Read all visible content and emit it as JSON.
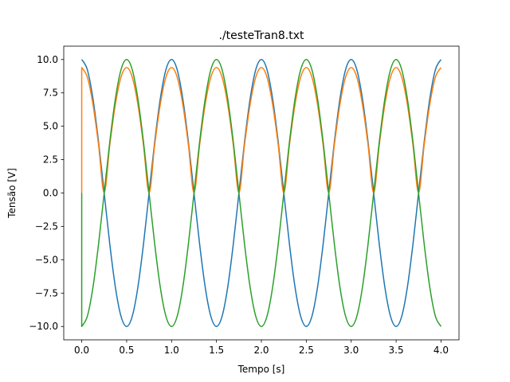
{
  "chart_data": {
    "type": "line",
    "title": "./testeTran8.txt",
    "xlabel": "Tempo [s]",
    "ylabel": "Tensão [V]",
    "xlim": [
      -0.2,
      4.2
    ],
    "ylim": [
      -11.0,
      11.0
    ],
    "xticks": [
      "0.0",
      "0.5",
      "1.0",
      "1.5",
      "2.0",
      "2.5",
      "3.0",
      "3.5",
      "4.0"
    ],
    "xtick_values": [
      0.0,
      0.5,
      1.0,
      1.5,
      2.0,
      2.5,
      3.0,
      3.5,
      4.0
    ],
    "yticks": [
      "−10.0",
      "−7.5",
      "−5.0",
      "−2.5",
      "0.0",
      "2.5",
      "5.0",
      "7.5",
      "10.0"
    ],
    "ytick_values": [
      -10.0,
      -7.5,
      -5.0,
      -2.5,
      0.0,
      2.5,
      5.0,
      7.5,
      10.0
    ],
    "grid": false,
    "legend": "none",
    "series": [
      {
        "color": "#1f77b4",
        "x": [
          0.0,
          0.0625,
          0.125,
          0.1875,
          0.25,
          0.3125,
          0.375,
          0.4375,
          0.5,
          0.5625,
          0.625,
          0.6875,
          0.75,
          0.8125,
          0.875,
          0.9375,
          1.0,
          1.0625,
          1.125,
          1.1875,
          1.25,
          1.3125,
          1.375,
          1.4375,
          1.5,
          1.5625,
          1.625,
          1.6875,
          1.75,
          1.8125,
          1.875,
          1.9375,
          2.0,
          2.0625,
          2.125,
          2.1875,
          2.25,
          2.3125,
          2.375,
          2.4375,
          2.5,
          2.5625,
          2.625,
          2.6875,
          2.75,
          2.8125,
          2.875,
          2.9375,
          3.0,
          3.0625,
          3.125,
          3.1875,
          3.25,
          3.3125,
          3.375,
          3.4375,
          3.5,
          3.5625,
          3.625,
          3.6875,
          3.75,
          3.8125,
          3.875,
          3.9375,
          4.0
        ],
        "y": [
          10.0,
          9.24,
          7.07,
          3.83,
          0.0,
          -3.83,
          -7.07,
          -9.24,
          -10.0,
          -9.24,
          -7.07,
          -3.83,
          0.0,
          3.83,
          7.07,
          9.24,
          10.0,
          9.24,
          7.07,
          3.83,
          0.0,
          -3.83,
          -7.07,
          -9.24,
          -10.0,
          -9.24,
          -7.07,
          -3.83,
          0.0,
          3.83,
          7.07,
          9.24,
          10.0,
          9.24,
          7.07,
          3.83,
          0.0,
          -3.83,
          -7.07,
          -9.24,
          -10.0,
          -9.24,
          -7.07,
          -3.83,
          0.0,
          3.83,
          7.07,
          9.24,
          10.0,
          9.24,
          7.07,
          3.83,
          0.0,
          -3.83,
          -7.07,
          -9.24,
          -10.0,
          -9.24,
          -7.07,
          -3.83,
          0.0,
          3.83,
          7.07,
          9.24,
          10.0
        ]
      },
      {
        "color": "#ff7f0e",
        "x": [
          0.0,
          0.0,
          0.0625,
          0.125,
          0.1875,
          0.25,
          0.3125,
          0.375,
          0.4375,
          0.5,
          0.5625,
          0.625,
          0.6875,
          0.75,
          0.8125,
          0.875,
          0.9375,
          1.0,
          1.0625,
          1.125,
          1.1875,
          1.25,
          1.3125,
          1.375,
          1.4375,
          1.5,
          1.5625,
          1.625,
          1.6875,
          1.75,
          1.8125,
          1.875,
          1.9375,
          2.0,
          2.0625,
          2.125,
          2.1875,
          2.25,
          2.3125,
          2.375,
          2.4375,
          2.5,
          2.5625,
          2.625,
          2.6875,
          2.75,
          2.8125,
          2.875,
          2.9375,
          3.0,
          3.0625,
          3.125,
          3.1875,
          3.25,
          3.3125,
          3.375,
          3.4375,
          3.5,
          3.5625,
          3.625,
          3.6875,
          3.75,
          3.8125,
          3.875,
          3.9375,
          4.0
        ],
        "y": [
          0.0,
          9.4,
          8.68,
          6.65,
          3.6,
          0.0,
          3.6,
          6.65,
          8.68,
          9.4,
          8.68,
          6.65,
          3.6,
          0.0,
          3.6,
          6.65,
          8.68,
          9.4,
          8.68,
          6.65,
          3.6,
          0.0,
          3.6,
          6.65,
          8.68,
          9.4,
          8.68,
          6.65,
          3.6,
          0.0,
          3.6,
          6.65,
          8.68,
          9.4,
          8.68,
          6.65,
          3.6,
          0.0,
          3.6,
          6.65,
          8.68,
          9.4,
          8.68,
          6.65,
          3.6,
          0.0,
          3.6,
          6.65,
          8.68,
          9.4,
          8.68,
          6.65,
          3.6,
          0.0,
          3.6,
          6.65,
          8.68,
          9.4,
          8.68,
          6.65,
          3.6,
          0.0,
          3.6,
          6.65,
          8.68,
          9.4
        ]
      },
      {
        "color": "#2ca02c",
        "x": [
          0.0,
          0.0,
          0.0625,
          0.125,
          0.1875,
          0.25,
          0.3125,
          0.375,
          0.4375,
          0.5,
          0.5625,
          0.625,
          0.6875,
          0.75,
          0.8125,
          0.875,
          0.9375,
          1.0,
          1.0625,
          1.125,
          1.1875,
          1.25,
          1.3125,
          1.375,
          1.4375,
          1.5,
          1.5625,
          1.625,
          1.6875,
          1.75,
          1.8125,
          1.875,
          1.9375,
          2.0,
          2.0625,
          2.125,
          2.1875,
          2.25,
          2.3125,
          2.375,
          2.4375,
          2.5,
          2.5625,
          2.625,
          2.6875,
          2.75,
          2.8125,
          2.875,
          2.9375,
          3.0,
          3.0625,
          3.125,
          3.1875,
          3.25,
          3.3125,
          3.375,
          3.4375,
          3.5,
          3.5625,
          3.625,
          3.6875,
          3.75,
          3.8125,
          3.875,
          3.9375,
          4.0
        ],
        "y": [
          0.0,
          -10.0,
          -9.24,
          -7.07,
          -3.83,
          0.0,
          3.83,
          7.07,
          9.24,
          10.0,
          9.24,
          7.07,
          3.83,
          0.0,
          -3.83,
          -7.07,
          -9.24,
          -10.0,
          -9.24,
          -7.07,
          -3.83,
          0.0,
          3.83,
          7.07,
          9.24,
          10.0,
          9.24,
          7.07,
          3.83,
          0.0,
          -3.83,
          -7.07,
          -9.24,
          -10.0,
          -9.24,
          -7.07,
          -3.83,
          0.0,
          3.83,
          7.07,
          9.24,
          10.0,
          9.24,
          7.07,
          3.83,
          0.0,
          -3.83,
          -7.07,
          -9.24,
          -10.0,
          -9.24,
          -7.07,
          -3.83,
          0.0,
          3.83,
          7.07,
          9.24,
          10.0,
          9.24,
          7.07,
          3.83,
          0.0,
          -3.83,
          -7.07,
          -9.24,
          -10.0
        ]
      }
    ]
  }
}
